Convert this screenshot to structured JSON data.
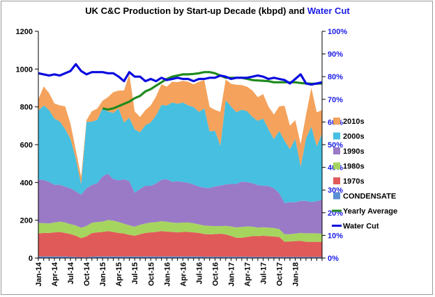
{
  "chart_data": {
    "type": "area",
    "title_main": "UK C&C Production by Start-up Decade (kbpd) and",
    "title_highlight": "Water Cut",
    "x_tick_labels": [
      "Jan-14",
      "Apr-14",
      "Jul-14",
      "Oct-14",
      "Jan-15",
      "Apr-15",
      "Jul-15",
      "Oct-15",
      "Jan-16",
      "Apr-16",
      "Jul-16",
      "Oct-16",
      "Jan-17",
      "Apr-17",
      "Jul-17",
      "Oct-17",
      "Jan-18"
    ],
    "ylim": [
      0,
      1200
    ],
    "y_ticks": [
      "0",
      "200",
      "400",
      "600",
      "800",
      "1000",
      "1200"
    ],
    "y2lim": [
      0,
      100
    ],
    "y2_ticks": [
      "0%",
      "10%",
      "20%",
      "30%",
      "40%",
      "50%",
      "60%",
      "70%",
      "80%",
      "90%",
      "100%"
    ],
    "legend_position": "right",
    "colors": {
      "CONDENSATE": "#5b8fd6",
      "1970s": "#e15a5a",
      "1980s": "#a6d55f",
      "1990s": "#9a7ac7",
      "2000s": "#46bfe0",
      "2010s": "#f4a25c",
      "Yearly Average": "#1f8a1f",
      "Water Cut": "#0a0ae0"
    },
    "stacked_series": [
      {
        "name": "CONDENSATE",
        "values": [
          8,
          8,
          8,
          8,
          8,
          8,
          7,
          6,
          5,
          5,
          7,
          8,
          8,
          8,
          8,
          8,
          8,
          8,
          8,
          8,
          8,
          8,
          8,
          8,
          8,
          8,
          8,
          8,
          8,
          8,
          8,
          7,
          7,
          7,
          7,
          7,
          7,
          7,
          7,
          7,
          6,
          6,
          6,
          6,
          6,
          6,
          6,
          6,
          6,
          6,
          6,
          6,
          6,
          6
        ]
      },
      {
        "name": "1970s",
        "values": [
          122,
          125,
          125,
          128,
          130,
          125,
          120,
          112,
          100,
          110,
          125,
          128,
          130,
          135,
          130,
          125,
          122,
          115,
          110,
          118,
          125,
          128,
          130,
          135,
          132,
          130,
          128,
          130,
          130,
          128,
          125,
          120,
          118,
          120,
          122,
          118,
          110,
          100,
          100,
          105,
          110,
          110,
          112,
          110,
          108,
          105,
          80,
          82,
          84,
          85,
          80,
          80,
          80,
          80
        ]
      },
      {
        "name": "1980s",
        "values": [
          55,
          52,
          50,
          52,
          55,
          55,
          52,
          55,
          55,
          55,
          55,
          55,
          55,
          58,
          60,
          58,
          52,
          50,
          48,
          50,
          50,
          52,
          52,
          52,
          52,
          50,
          50,
          50,
          50,
          48,
          45,
          45,
          45,
          42,
          40,
          45,
          50,
          55,
          58,
          55,
          50,
          45,
          45,
          45,
          45,
          42,
          40,
          38,
          40,
          42,
          45,
          45,
          45,
          42
        ]
      },
      {
        "name": "1990s",
        "values": [
          230,
          228,
          220,
          200,
          195,
          190,
          190,
          180,
          175,
          200,
          200,
          205,
          240,
          245,
          220,
          220,
          235,
          235,
          180,
          190,
          200,
          195,
          205,
          220,
          225,
          215,
          220,
          215,
          210,
          205,
          200,
          200,
          200,
          210,
          215,
          220,
          225,
          230,
          240,
          235,
          230,
          225,
          220,
          220,
          210,
          190,
          165,
          170,
          165,
          170,
          172,
          165,
          170,
          180
        ]
      },
      {
        "name": "2000s",
        "values": [
          365,
          395,
          380,
          350,
          335,
          305,
          262,
          172,
          55,
          350,
          335,
          335,
          360,
          330,
          350,
          380,
          300,
          335,
          335,
          300,
          320,
          335,
          360,
          395,
          390,
          420,
          410,
          420,
          410,
          410,
          395,
          420,
          300,
          295,
          210,
          445,
          410,
          380,
          380,
          375,
          350,
          340,
          355,
          300,
          260,
          330,
          330,
          280,
          335,
          180,
          330,
          400,
          290,
          350
        ]
      },
      {
        "name": "2010s",
        "values": [
          60,
          100,
          90,
          80,
          85,
          120,
          80,
          45,
          40,
          10,
          55,
          60,
          40,
          75,
          110,
          95,
          170,
          230,
          95,
          80,
          80,
          90,
          100,
          110,
          100,
          110,
          115,
          115,
          125,
          120,
          160,
          150,
          130,
          110,
          180,
          110,
          120,
          145,
          130,
          130,
          140,
          125,
          130,
          120,
          130,
          130,
          185,
          125,
          100,
          120,
          125,
          205,
          180,
          125
        ]
      }
    ],
    "line_series": [
      {
        "name": "Yearly Average",
        "axis": "right",
        "start_index": 12,
        "values": [
          66,
          65.5,
          66,
          67,
          68,
          69,
          70.5,
          71.5,
          73.5,
          74.5,
          76,
          77.5,
          79,
          80,
          80.5,
          81,
          81,
          81.2,
          81.5,
          82,
          82,
          81.5,
          80.5,
          79.5,
          79.5,
          79.5,
          79.5,
          79,
          78.5,
          78.3,
          78.2,
          78,
          77.5,
          77.5,
          77.5,
          77.5,
          77.5,
          77.2,
          77,
          76.9,
          76.9,
          77
        ]
      },
      {
        "name": "Water Cut",
        "axis": "right",
        "start_index": 0,
        "values": [
          81.5,
          81,
          80.5,
          81,
          80.5,
          81.5,
          82.5,
          85.5,
          82.5,
          81,
          82,
          82,
          82,
          81.5,
          81.5,
          80,
          78,
          82,
          80,
          80,
          78,
          79,
          78,
          79.5,
          78.5,
          79,
          79.5,
          79,
          79,
          78,
          79,
          79,
          79.5,
          79.5,
          80.5,
          80,
          79,
          79.5,
          79.5,
          79.5,
          80,
          80.5,
          80,
          79,
          79.5,
          79,
          78.5,
          77,
          79,
          81,
          77,
          76.5,
          77,
          77.5
        ]
      }
    ]
  }
}
